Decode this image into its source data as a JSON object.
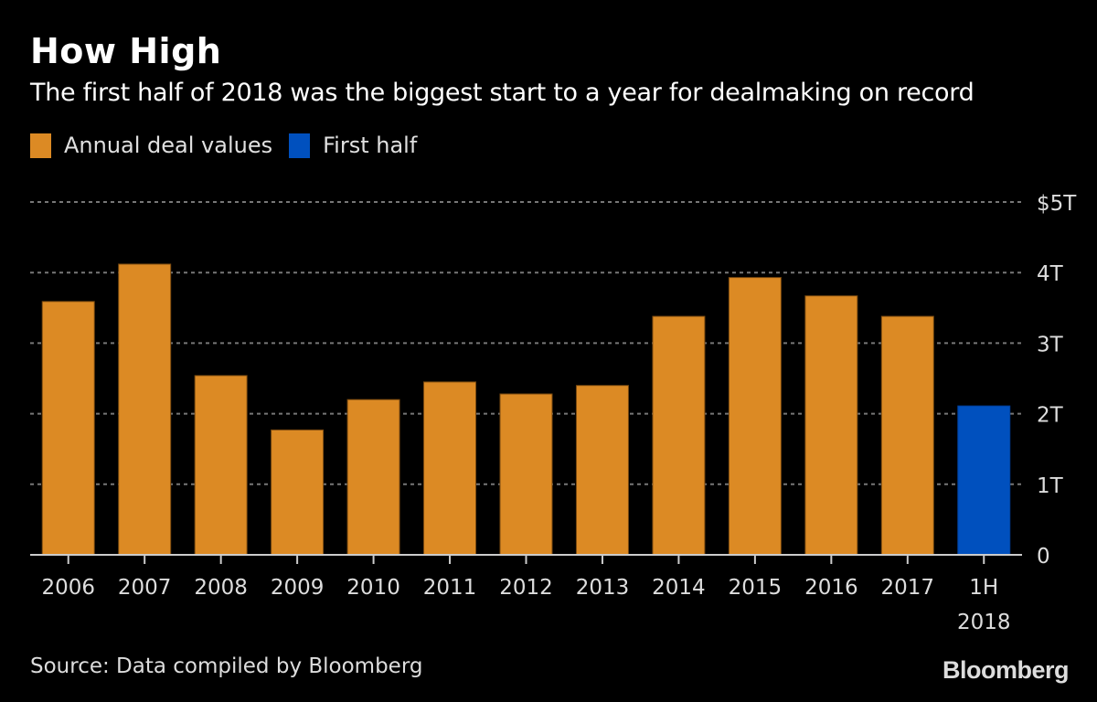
{
  "header": {
    "title": "How High",
    "subtitle": "The first half of 2018 was the biggest start to a year for dealmaking on record"
  },
  "legend": [
    {
      "label": "Annual deal values",
      "color": "#DC8A24"
    },
    {
      "label": "First half",
      "color": "#0050BE"
    }
  ],
  "footer": {
    "source": "Source: Data compiled by Bloomberg",
    "brand": "Bloomberg"
  },
  "chart_data": {
    "type": "bar",
    "title": "How High",
    "subtitle": "The first half of 2018 was the biggest start to a year for dealmaking on record",
    "xlabel": "",
    "ylabel": "",
    "unit": "trillion USD",
    "categories": [
      "2006",
      "2007",
      "2008",
      "2009",
      "2010",
      "2011",
      "2012",
      "2013",
      "2014",
      "2015",
      "2016",
      "2017",
      "1H 2018"
    ],
    "category_labels": [
      [
        "2006"
      ],
      [
        "2007"
      ],
      [
        "2008"
      ],
      [
        "2009"
      ],
      [
        "2010"
      ],
      [
        "2011"
      ],
      [
        "2012"
      ],
      [
        "2013"
      ],
      [
        "2014"
      ],
      [
        "2015"
      ],
      [
        "2016"
      ],
      [
        "2017"
      ],
      [
        "1H",
        "2018"
      ]
    ],
    "values": [
      3.59,
      4.12,
      2.54,
      1.77,
      2.2,
      2.45,
      2.28,
      2.4,
      3.38,
      3.93,
      3.67,
      3.38,
      2.11
    ],
    "series_assignment": [
      "Annual deal values",
      "Annual deal values",
      "Annual deal values",
      "Annual deal values",
      "Annual deal values",
      "Annual deal values",
      "Annual deal values",
      "Annual deal values",
      "Annual deal values",
      "Annual deal values",
      "Annual deal values",
      "Annual deal values",
      "First half"
    ],
    "series_colors": {
      "Annual deal values": "#DC8A24",
      "First half": "#0050BE"
    },
    "ylim": [
      0,
      5
    ],
    "yticks": [
      0,
      1,
      2,
      3,
      4,
      5
    ],
    "ytick_labels": [
      "0",
      "1T",
      "2T",
      "3T",
      "4T",
      "$5T"
    ],
    "y_axis_position": "right",
    "grid": true,
    "grid_style": "dotted",
    "legend_position": "top-left"
  }
}
